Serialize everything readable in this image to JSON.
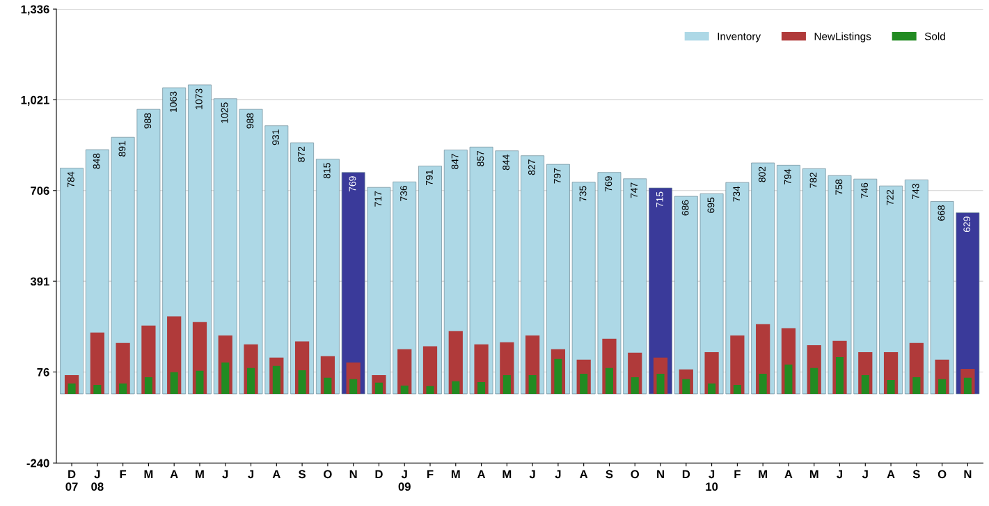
{
  "chart_data": {
    "type": "bar",
    "categories": [
      "D\n07",
      "J\n08",
      "F",
      "M",
      "A",
      "M",
      "J",
      "J",
      "A",
      "S",
      "O",
      "N",
      "D",
      "J\n09",
      "F",
      "M",
      "A",
      "M",
      "J",
      "J",
      "A",
      "S",
      "O",
      "N",
      "D",
      "J\n10",
      "F",
      "M",
      "A",
      "M",
      "J",
      "J",
      "A",
      "S",
      "O",
      "N"
    ],
    "series": [
      {
        "name": "Inventory",
        "color": "#add8e6",
        "colors": [
          "#add8e6",
          "#add8e6",
          "#add8e6",
          "#add8e6",
          "#add8e6",
          "#add8e6",
          "#add8e6",
          "#add8e6",
          "#add8e6",
          "#add8e6",
          "#add8e6",
          "#3a3a9a",
          "#add8e6",
          "#add8e6",
          "#add8e6",
          "#add8e6",
          "#add8e6",
          "#add8e6",
          "#add8e6",
          "#add8e6",
          "#add8e6",
          "#add8e6",
          "#add8e6",
          "#3a3a9a",
          "#add8e6",
          "#add8e6",
          "#add8e6",
          "#add8e6",
          "#add8e6",
          "#add8e6",
          "#add8e6",
          "#add8e6",
          "#add8e6",
          "#add8e6",
          "#add8e6",
          "#3a3a9a"
        ],
        "values": [
          784,
          848,
          891,
          988,
          1063,
          1073,
          1025,
          988,
          931,
          872,
          815,
          769,
          717,
          736,
          791,
          847,
          857,
          844,
          827,
          797,
          735,
          769,
          747,
          715,
          686,
          695,
          734,
          802,
          794,
          782,
          758,
          746,
          722,
          743,
          668,
          629
        ],
        "data_labels": true
      },
      {
        "name": "NewListings",
        "color": "#b03a3a",
        "values": [
          65,
          213,
          177,
          237,
          269,
          249,
          203,
          172,
          126,
          182,
          131,
          109,
          65,
          155,
          165,
          218,
          172,
          179,
          203,
          155,
          119,
          191,
          143,
          126,
          85,
          145,
          203,
          242,
          228,
          169,
          184,
          145,
          145,
          177,
          119,
          87
        ]
      },
      {
        "name": "Sold",
        "color": "#228b22",
        "values": [
          36,
          31,
          36,
          58,
          75,
          80,
          109,
          90,
          97,
          82,
          56,
          51,
          39,
          29,
          27,
          44,
          41,
          65,
          65,
          121,
          70,
          90,
          58,
          70,
          51,
          36,
          31,
          70,
          102,
          90,
          128,
          65,
          48,
          58,
          51,
          56
        ]
      }
    ],
    "ylim": [
      -240,
      1336
    ],
    "yticks": [
      {
        "value": -240,
        "label": "-240"
      },
      {
        "value": 76,
        "label": "76"
      },
      {
        "value": 391,
        "label": "391"
      },
      {
        "value": 706,
        "label": "706"
      },
      {
        "value": 1021,
        "label": "1,021"
      },
      {
        "value": 1336,
        "label": "1,336"
      }
    ],
    "grid": "y",
    "legend": "top right"
  }
}
